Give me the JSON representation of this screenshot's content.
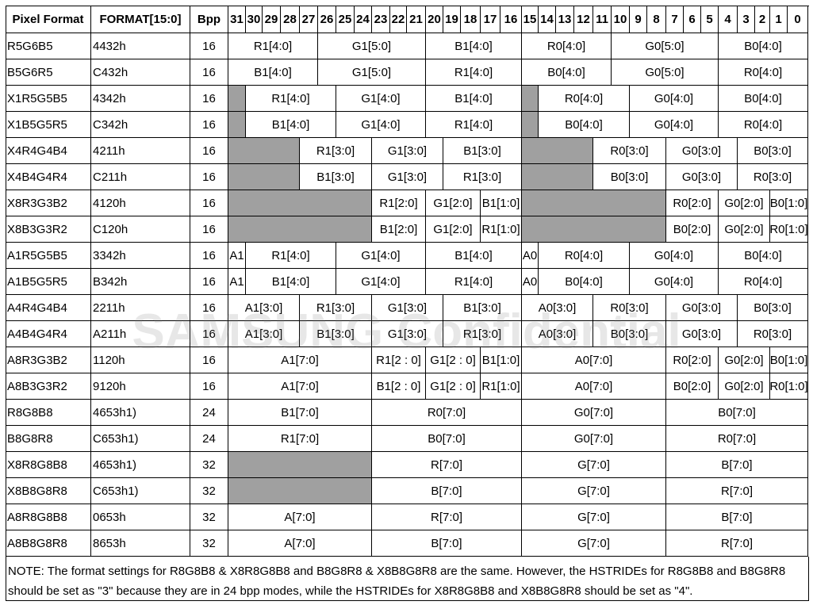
{
  "table": {
    "header": [
      "Pixel Format",
      "FORMAT[15:0]",
      "Bpp"
    ],
    "bits": [
      31,
      30,
      29,
      28,
      27,
      26,
      25,
      24,
      23,
      22,
      21,
      20,
      19,
      18,
      17,
      16,
      15,
      14,
      13,
      12,
      11,
      10,
      9,
      8,
      7,
      6,
      5,
      4,
      3,
      2,
      1,
      0
    ],
    "rows": [
      {
        "format": "R5G6B5",
        "code": "4432h",
        "bpp": 16,
        "fields": [
          "R1[4:0]",
          "G1[5:0]",
          "B1[4:0]",
          "R0[4:0]",
          "G0[5:0]",
          "B0[4:0]"
        ]
      },
      {
        "format": "B5G6R5",
        "code": "C432h",
        "bpp": 16,
        "fields": [
          "B1[4:0]",
          "G1[5:0]",
          "R1[4:0]",
          "B0[4:0]",
          "G0[5:0]",
          "R0[4:0]"
        ]
      },
      {
        "format": "X1R5G5B5",
        "code": "4342h",
        "bpp": 16,
        "fields": [
          "R1[4:0]",
          "G1[4:0]",
          "B1[4:0]",
          "R0[4:0]",
          "G0[4:0]",
          "B0[4:0]"
        ]
      },
      {
        "format": "X1B5G5R5",
        "code": "C342h",
        "bpp": 16,
        "fields": [
          "B1[4:0]",
          "G1[4:0]",
          "R1[4:0]",
          "B0[4:0]",
          "G0[4:0]",
          "R0[4:0]"
        ]
      },
      {
        "format": "X4R4G4B4",
        "code": "4211h",
        "bpp": 16,
        "fields": [
          "R1[3:0]",
          "G1[3:0]",
          "B1[3:0]",
          "R0[3:0]",
          "G0[3:0]",
          "B0[3:0]"
        ]
      },
      {
        "format": "X4B4G4R4",
        "code": "C211h",
        "bpp": 16,
        "fields": [
          "B1[3:0]",
          "G1[3:0]",
          "R1[3:0]",
          "B0[3:0]",
          "G0[3:0]",
          "R0[3:0]"
        ]
      },
      {
        "format": "X8R3G3B2",
        "code": "4120h",
        "bpp": 16,
        "fields": [
          "R1[2:0]",
          "G1[2:0]",
          "B1[1:0]",
          "R0[2:0]",
          "G0[2:0]",
          "B0[1:0]"
        ]
      },
      {
        "format": "X8B3G3R2",
        "code": "C120h",
        "bpp": 16,
        "fields": [
          "B1[2:0]",
          "G1[2:0]",
          "R1[1:0]",
          "B0[2:0]",
          "G0[2:0]",
          "R0[1:0]"
        ]
      },
      {
        "format": "A1R5G5B5",
        "code": "3342h",
        "bpp": 16,
        "fields": [
          "A1",
          "R1[4:0]",
          "G1[4:0]",
          "B1[4:0]",
          "A0",
          "R0[4:0]",
          "G0[4:0]",
          "B0[4:0]"
        ]
      },
      {
        "format": "A1B5G5R5",
        "code": "B342h",
        "bpp": 16,
        "fields": [
          "A1",
          "B1[4:0]",
          "G1[4:0]",
          "R1[4:0]",
          "A0",
          "B0[4:0]",
          "G0[4:0]",
          "R0[4:0]"
        ]
      },
      {
        "format": "A4R4G4B4",
        "code": "2211h",
        "bpp": 16,
        "fields": [
          "A1[3:0]",
          "R1[3:0]",
          "G1[3:0]",
          "B1[3:0]",
          "A0[3:0]",
          "R0[3:0]",
          "G0[3:0]",
          "B0[3:0]"
        ]
      },
      {
        "format": "A4B4G4R4",
        "code": "A211h",
        "bpp": 16,
        "fields": [
          "A1[3:0]",
          "B1[3:0]",
          "G1[3:0]",
          "R1[3:0]",
          "A0[3:0]",
          "B0[3:0]",
          "G0[3:0]",
          "R0[3:0]"
        ]
      },
      {
        "format": "A8R3G3B2",
        "code": "1120h",
        "bpp": 16,
        "fields": [
          "A1[7:0]",
          "R1[2 : 0]",
          "G1[2 : 0]",
          "B1[1:0]",
          "A0[7:0]",
          "R0[2:0]",
          "G0[2:0]",
          "B0[1:0]"
        ]
      },
      {
        "format": "A8B3G3R2",
        "code": "9120h",
        "bpp": 16,
        "fields": [
          "A1[7:0]",
          "B1[2 : 0]",
          "G1[2 : 0]",
          "R1[1:0]",
          "A0[7:0]",
          "B0[2:0]",
          "G0[2:0]",
          "R0[1:0]"
        ]
      },
      {
        "format": "R8G8B8",
        "code": "4653h1)",
        "bpp": 24,
        "fields": [
          "B1[7:0]",
          "R0[7:0]",
          "G0[7:0]",
          "B0[7:0]"
        ]
      },
      {
        "format": "B8G8R8",
        "code": "C653h1)",
        "bpp": 24,
        "fields": [
          "R1[7:0]",
          "B0[7:0]",
          "G0[7:0]",
          "R0[7:0]"
        ]
      },
      {
        "format": "X8R8G8B8",
        "code": "4653h1)",
        "bpp": 32,
        "fields": [
          "R[7:0]",
          "G[7:0]",
          "B[7:0]"
        ]
      },
      {
        "format": "X8B8G8R8",
        "code": "C653h1)",
        "bpp": 32,
        "fields": [
          "B[7:0]",
          "G[7:0]",
          "R[7:0]"
        ]
      },
      {
        "format": "A8R8G8B8",
        "code": "0653h",
        "bpp": 32,
        "fields": [
          "A[7:0]",
          "R[7:0]",
          "G[7:0]",
          "B[7:0]"
        ]
      },
      {
        "format": "A8B8G8R8",
        "code": "8653h",
        "bpp": 32,
        "fields": [
          "A[7:0]",
          "B[7:0]",
          "G[7:0]",
          "R[7:0]"
        ]
      }
    ],
    "note": "NOTE: The format settings for R8G8B8 & X8R8G8B8 and B8G8R8 & X8B8G8R8 are the same. However, the HSTRIDEs for R8G8B8 and B8G8R8 should be set as \"3\" because they are in 24 bpp modes, while the HSTRIDEs for X8R8G8B8 and X8B8G8R8 should be set as \"4\".",
    "watermark": "SAMSUNG Confidential"
  }
}
